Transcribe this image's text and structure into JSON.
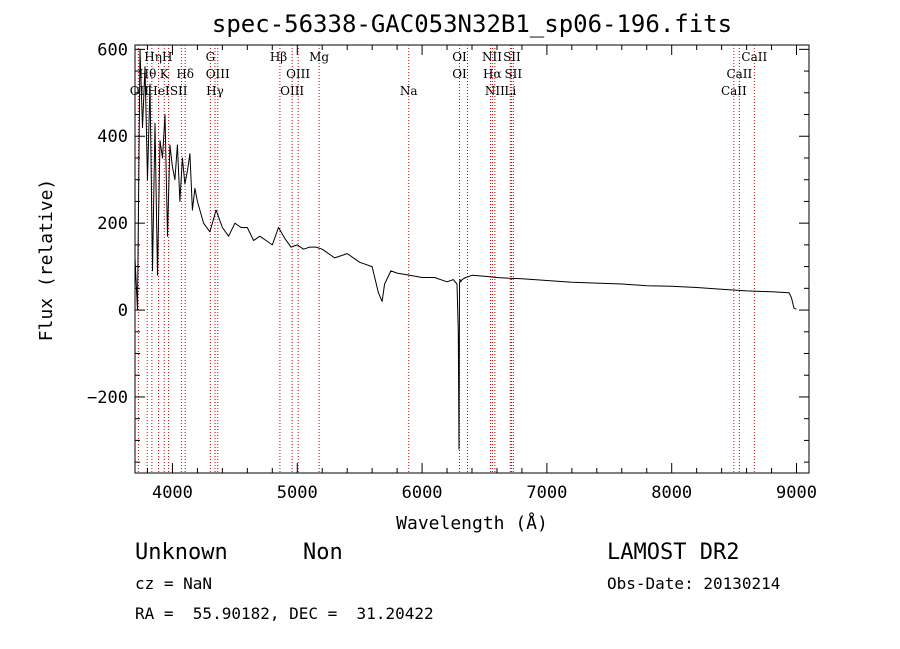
{
  "chart_data": {
    "type": "line",
    "title": "spec-56338-GAC053N32B1_sp06-196.fits",
    "xlabel": "Wavelength (Å)",
    "ylabel": "Flux (relative)",
    "xlim": [
      3700,
      9100
    ],
    "ylim": [
      -375,
      610
    ],
    "xticks": [
      4000,
      5000,
      6000,
      7000,
      8000,
      9000
    ],
    "xtick_labels": [
      "4000",
      "5000",
      "6000",
      "7000",
      "8000",
      "9000"
    ],
    "yticks": [
      -200,
      0,
      200,
      400,
      600
    ],
    "ytick_labels": [
      "−200",
      "0",
      "200",
      "400",
      "600"
    ],
    "grid": false,
    "series": [
      {
        "x": [
          3700,
          3720,
          3740,
          3760,
          3780,
          3800,
          3820,
          3840,
          3860,
          3880,
          3900,
          3920,
          3940,
          3960,
          3980,
          4000,
          4020,
          4040,
          4060,
          4080,
          4100,
          4120,
          4140,
          4160,
          4180,
          4200,
          4250,
          4300,
          4350,
          4400,
          4450,
          4500,
          4550,
          4600,
          4650,
          4700,
          4750,
          4800,
          4850,
          4900,
          4950,
          5000,
          5050,
          5100,
          5150,
          5200,
          5300,
          5400,
          5500,
          5600,
          5650,
          5680,
          5700,
          5750,
          5800,
          5900,
          6000,
          6100,
          6200,
          6250,
          6280,
          6290,
          6296,
          6300,
          6304,
          6310,
          6320,
          6350,
          6400,
          6500,
          6600,
          6700,
          6800,
          7000,
          7200,
          7400,
          7600,
          7800,
          8000,
          8200,
          8400,
          8600,
          8800,
          8940,
          8960,
          8980,
          9000
        ],
        "y": [
          120,
          0,
          600,
          420,
          560,
          300,
          520,
          90,
          430,
          80,
          390,
          350,
          450,
          170,
          380,
          330,
          300,
          380,
          250,
          350,
          290,
          320,
          360,
          230,
          280,
          250,
          200,
          180,
          230,
          190,
          170,
          200,
          190,
          190,
          160,
          170,
          160,
          150,
          190,
          165,
          145,
          150,
          140,
          145,
          145,
          140,
          120,
          130,
          110,
          100,
          40,
          20,
          60,
          90,
          85,
          80,
          75,
          75,
          65,
          70,
          60,
          -50,
          -320,
          60,
          70,
          65,
          70,
          75,
          80,
          78,
          75,
          73,
          72,
          68,
          64,
          62,
          60,
          56,
          55,
          52,
          48,
          44,
          42,
          40,
          28,
          4,
          2
        ]
      }
    ],
    "lines": [
      {
        "x": 3727,
        "labels": [
          "OII"
        ]
      },
      {
        "x": 3798,
        "labels": [
          "Hθ"
        ]
      },
      {
        "x": 3835,
        "labels": [
          "Hη"
        ]
      },
      {
        "x": 3889,
        "labels": [
          "HeI"
        ]
      },
      {
        "x": 3934,
        "labels": [
          "K"
        ]
      },
      {
        "x": 3969,
        "labels": [
          "H"
        ]
      },
      {
        "x": 4072,
        "labels": [
          "SII"
        ]
      },
      {
        "x": 4102,
        "labels": [
          "Hδ"
        ]
      },
      {
        "x": 4304,
        "labels": [
          "G"
        ]
      },
      {
        "x": 4341,
        "labels": [
          "Hγ"
        ]
      },
      {
        "x": 4363,
        "labels": [
          "OIII"
        ]
      },
      {
        "x": 4861,
        "labels": [
          "Hβ"
        ]
      },
      {
        "x": 4959,
        "labels": [
          "OIII"
        ]
      },
      {
        "x": 5007,
        "labels": [
          "OIII"
        ]
      },
      {
        "x": 5175,
        "labels": [
          "Mg"
        ]
      },
      {
        "x": 5893,
        "labels": [
          "Na"
        ]
      },
      {
        "x": 6300,
        "labels": [
          "OI"
        ]
      },
      {
        "x": 6364,
        "labels": [
          "OI"
        ]
      },
      {
        "x": 6548,
        "labels": [
          "NII"
        ]
      },
      {
        "x": 6563,
        "labels": [
          "Hα"
        ]
      },
      {
        "x": 6583,
        "labels": [
          "NII"
        ]
      },
      {
        "x": 6707,
        "labels": [
          "Li"
        ]
      },
      {
        "x": 6717,
        "labels": [
          "SII"
        ]
      },
      {
        "x": 6731,
        "labels": [
          "SII"
        ]
      },
      {
        "x": 8498,
        "labels": [
          "CaII"
        ]
      },
      {
        "x": 8542,
        "labels": [
          "CaII"
        ]
      },
      {
        "x": 8662,
        "labels": [
          "CaII"
        ]
      }
    ],
    "line_label_rows": [
      {
        "text": "Hη",
        "x": 3845,
        "row": 0
      },
      {
        "text": "H",
        "x": 3958,
        "row": 0
      },
      {
        "text": "G",
        "x": 4304,
        "row": 0
      },
      {
        "text": "Hβ",
        "x": 4850,
        "row": 0
      },
      {
        "text": "Mg",
        "x": 5175,
        "row": 0
      },
      {
        "text": "OI",
        "x": 6300,
        "row": 0
      },
      {
        "text": "NII",
        "x": 6560,
        "row": 0
      },
      {
        "text": "SII",
        "x": 6720,
        "row": 0
      },
      {
        "text": "CaII",
        "x": 8662,
        "row": 0
      },
      {
        "text": "Hθ",
        "x": 3800,
        "row": 1
      },
      {
        "text": "K",
        "x": 3934,
        "row": 1
      },
      {
        "text": "Hδ",
        "x": 4102,
        "row": 1
      },
      {
        "text": "OIII",
        "x": 4363,
        "row": 1
      },
      {
        "text": "OIII",
        "x": 5007,
        "row": 1
      },
      {
        "text": "OI",
        "x": 6300,
        "row": 1
      },
      {
        "text": "Hα",
        "x": 6563,
        "row": 1
      },
      {
        "text": "SII",
        "x": 6731,
        "row": 1
      },
      {
        "text": "CaII",
        "x": 8542,
        "row": 1
      },
      {
        "text": "OII",
        "x": 3735,
        "row": 2
      },
      {
        "text": "HeI",
        "x": 3889,
        "row": 2
      },
      {
        "text": "SII",
        "x": 4050,
        "row": 2
      },
      {
        "text": "Hγ",
        "x": 4341,
        "row": 2
      },
      {
        "text": "OIII",
        "x": 4959,
        "row": 2
      },
      {
        "text": "Na",
        "x": 5893,
        "row": 2
      },
      {
        "text": "NII",
        "x": 6583,
        "row": 2
      },
      {
        "text": "Li",
        "x": 6707,
        "row": 2
      },
      {
        "text": "CaII",
        "x": 8498,
        "row": 2
      }
    ],
    "line_color": "#000000",
    "marker_color": "#cc0000"
  },
  "info": {
    "class": "Unknown",
    "subclass": "Non",
    "survey": "LAMOST DR2",
    "cz": "cz = NaN",
    "obs_date": "Obs-Date: 20130214",
    "coords": "RA =  55.90182, DEC =  31.20422"
  }
}
